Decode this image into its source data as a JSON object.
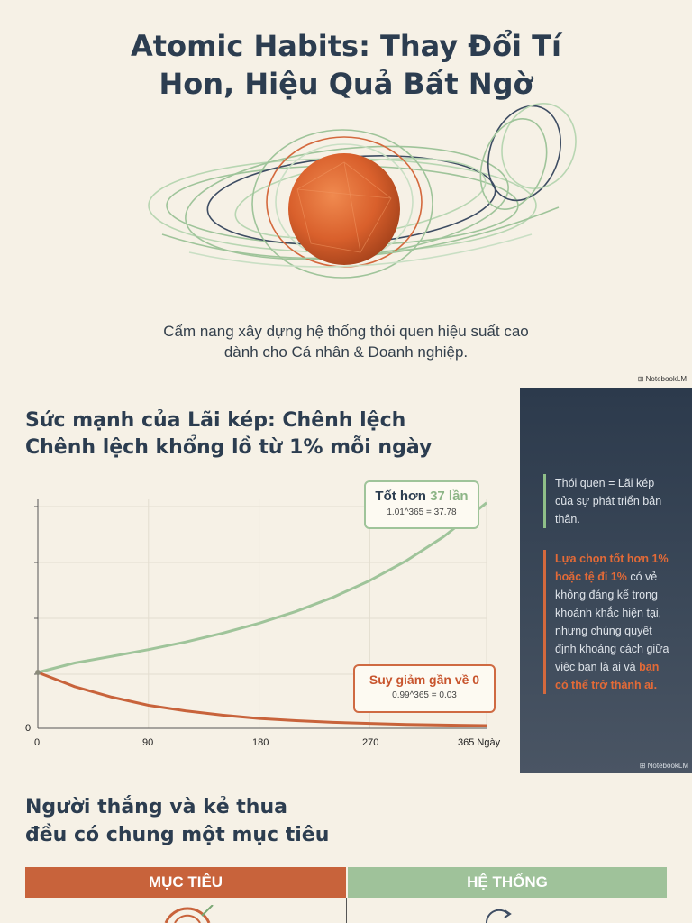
{
  "header": {
    "title_line1": "Atomic Habits: Thay Đổi Tí",
    "title_line2": "Hon, Hiệu Quả Bất Ngờ",
    "subtitle_line1": "Cẩm nang xây dựng hệ thống thói quen hiệu suất cao",
    "subtitle_line2": "dành cho Cá nhân & Doanh nghiệp."
  },
  "watermark": "NotebookLM",
  "compound_section": {
    "heading_line1": "Sức mạnh của Lãi kép: Chênh lệch",
    "heading_line2": "Chênh lệch khổng lồ từ 1% mỗi ngày",
    "callout_good": {
      "text_prefix": "Tốt hơn ",
      "text_highlight": "37 lần",
      "formula": "1.01^365 = 37.78"
    },
    "callout_bad": {
      "text": "Suy giảm gần về 0",
      "formula": "0.99^365 = 0.03"
    }
  },
  "chart_data": {
    "type": "line",
    "x_ticks": [
      "0",
      "90",
      "180",
      "270",
      "365 Ngày"
    ],
    "y_tick_labels": [
      "0"
    ],
    "xlim": [
      0,
      365
    ],
    "grid": true,
    "series": [
      {
        "values": [
          [
            0,
            1
          ],
          [
            30,
            1.35
          ],
          [
            60,
            1.82
          ],
          [
            90,
            2.45
          ],
          [
            120,
            3.3
          ],
          [
            150,
            4.45
          ],
          [
            180,
            6.0
          ],
          [
            210,
            8.08
          ],
          [
            240,
            10.89
          ],
          [
            270,
            14.68
          ],
          [
            300,
            19.79
          ],
          [
            330,
            26.67
          ],
          [
            365,
            37.78
          ]
        ],
        "color": "#9fc49a"
      },
      {
        "values": [
          [
            0,
            1
          ],
          [
            30,
            0.74
          ],
          [
            60,
            0.55
          ],
          [
            90,
            0.4
          ],
          [
            120,
            0.3
          ],
          [
            150,
            0.22
          ],
          [
            180,
            0.16
          ],
          [
            210,
            0.12
          ],
          [
            240,
            0.09
          ],
          [
            270,
            0.07
          ],
          [
            300,
            0.05
          ],
          [
            330,
            0.04
          ],
          [
            365,
            0.03
          ]
        ],
        "color": "#c8633b"
      }
    ]
  },
  "side_panel": {
    "green_text": "Thói quen = Lãi kép của sự phát triển bản thân.",
    "orange_hot1": "Lựa chọn tốt hơn 1% hoặc tệ đi 1%",
    "orange_text": " có vẻ không đáng kể trong khoảnh khắc hiện tại, nhưng chúng quyết định khoảng cách giữa việc bạn là ai và ",
    "orange_hot2": "bạn có thể trở thành ai."
  },
  "goals_section": {
    "heading_line1": "Người thắng và kẻ thua",
    "heading_line2": "đều có chung một mục tiêu",
    "col_goal": "MỤC TIÊU",
    "col_system": "HỆ THỐNG"
  },
  "colors": {
    "accent_orange": "#c8633b",
    "accent_green": "#9fc29a",
    "dark_navy": "#2c3d50",
    "background": "#f6f1e6"
  }
}
